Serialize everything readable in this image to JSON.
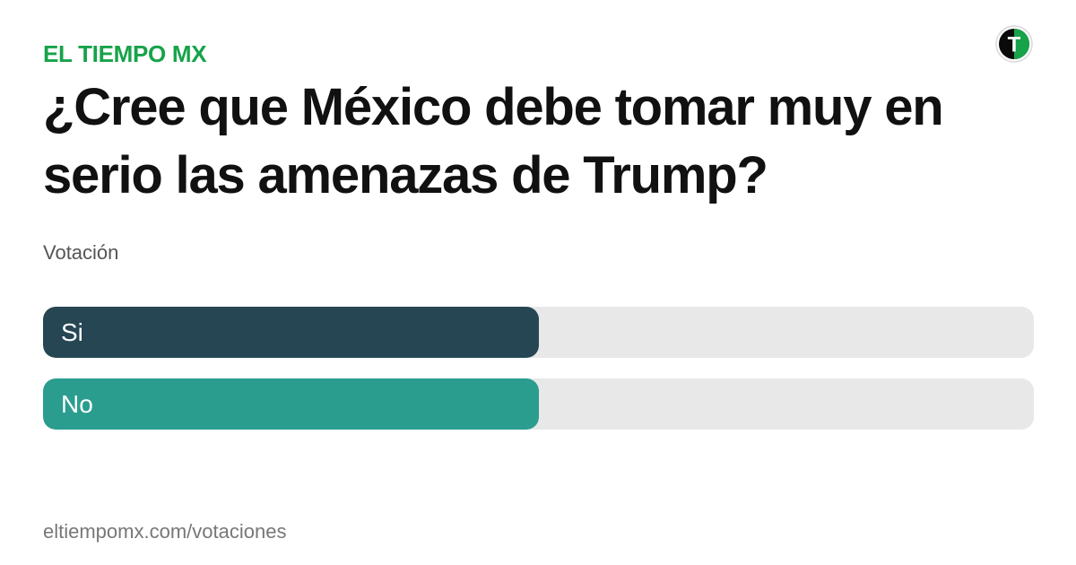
{
  "brand": {
    "name": "EL TIEMPO MX",
    "color": "#16a34a"
  },
  "logo": {
    "icon": "el-tiempo-logo-icon",
    "letter": "T"
  },
  "poll": {
    "question": "¿Cree que México debe tomar muy en serio las amenazas de Trump?",
    "type_label": "Votación",
    "options": [
      {
        "label": "Si",
        "share": 0.5,
        "color": "#264653"
      },
      {
        "label": "No",
        "share": 0.5,
        "color": "#2a9d8f"
      }
    ]
  },
  "footer": {
    "url": "eltiempomx.com/votaciones"
  }
}
